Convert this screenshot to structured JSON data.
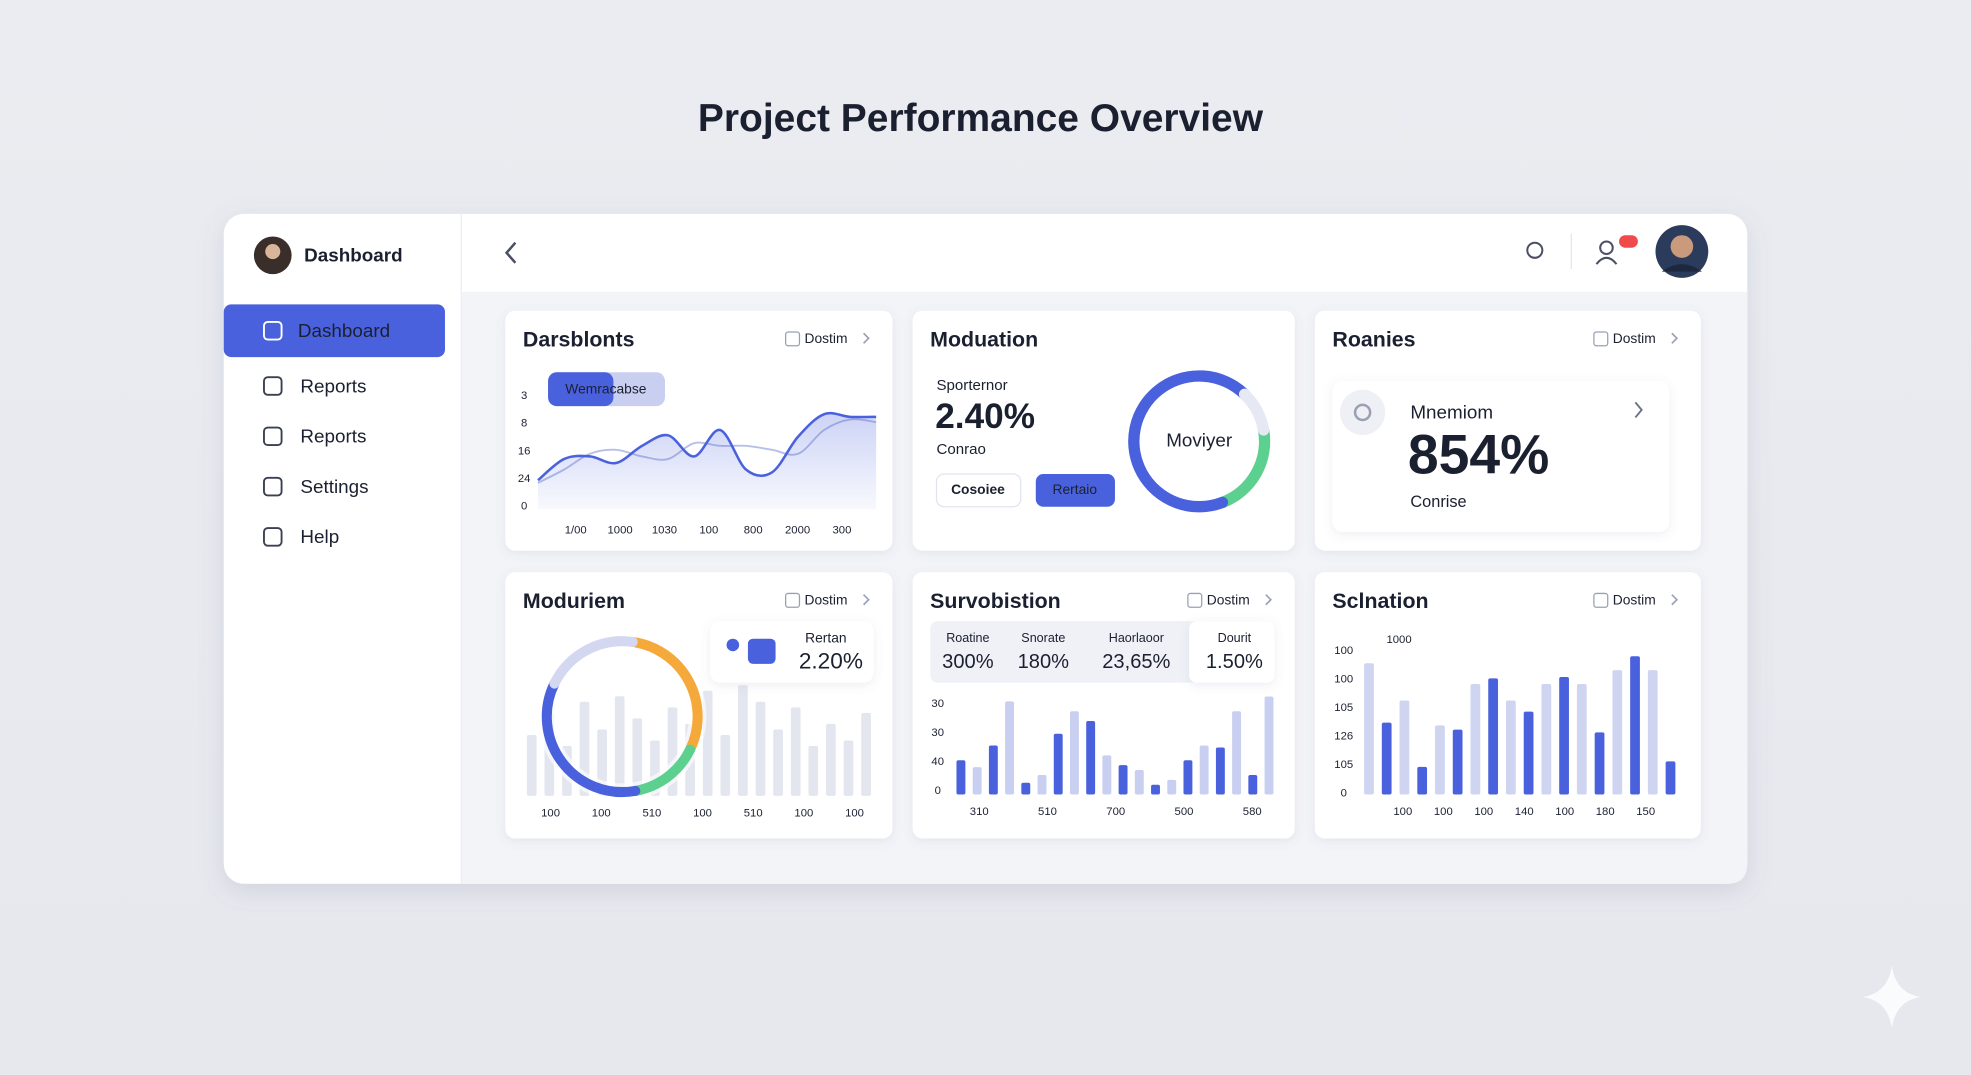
{
  "header": {
    "title": "Project Performance Overview"
  },
  "sidebar": {
    "brand": "Dashboard",
    "nav": [
      "Dashboard",
      "Reports",
      "Reports",
      "Settings",
      "Help"
    ]
  },
  "cards": [
    {
      "title": "Darsblonts",
      "link": "Dostim",
      "pill": "Wemracabse",
      "chart": {
        "type": "line",
        "y_labels": [
          "3",
          "8",
          "16",
          "24",
          "0"
        ],
        "x_labels": [
          "1/00",
          "1000",
          "1030",
          "100",
          "800",
          "2000",
          "300"
        ],
        "ylim": [
          0,
          100
        ],
        "series": [
          {
            "color": "#4a61dd",
            "values": [
              22,
              38,
              40,
              35,
              48,
              56,
              40,
              60,
              30,
              28,
              55,
              72,
              70,
              70
            ]
          },
          {
            "color": "#b7bfe6",
            "values": [
              20,
              30,
              42,
              45,
              40,
              38,
              50,
              48,
              48,
              45,
              42,
              60,
              68,
              66
            ]
          }
        ]
      }
    },
    {
      "title": "Moduation",
      "kpi_label": "Sporternor",
      "kpi_value": "2.40%",
      "kpi_note": "Conrao",
      "buttons": [
        "Cosoiee",
        "Rertaio"
      ],
      "donut": {
        "center": "Moviyer",
        "segments": [
          {
            "color": "#5cd08e",
            "value": 22
          },
          {
            "color": "#4a61dd",
            "value": 68
          },
          {
            "color": "#e6e9f3",
            "value": 10
          }
        ]
      }
    },
    {
      "title": "Roanies",
      "link": "Dostim",
      "kpi_label": "Mnemiom",
      "kpi_value": "854%",
      "kpi_note": "Conrise"
    },
    {
      "title": "Moduriem",
      "link": "Dostim",
      "badge_label": "Rertan",
      "badge_value": "2.20%",
      "donut": {
        "segments": [
          {
            "color": "#f5a93b",
            "value": 30
          },
          {
            "color": "#5cd08e",
            "value": 15
          },
          {
            "color": "#4a61dd",
            "value": 35
          },
          {
            "color": "#d3d8f0",
            "value": 20
          }
        ]
      },
      "bars": {
        "ylim": [
          0,
          100
        ],
        "series": [
          {
            "color": "#e3e6ef",
            "values": [
              55,
              75,
              45,
              85,
              60,
              90,
              70,
              50,
              80,
              65,
              95,
              55,
              100,
              85,
              60,
              80,
              45,
              65,
              50,
              75
            ]
          }
        ]
      },
      "x_labels": [
        "100",
        "100",
        "510",
        "100",
        "510",
        "100",
        "100"
      ]
    },
    {
      "title": "Survobistion",
      "link": "Dostim",
      "table": {
        "headers": [
          "Roatine",
          "Snorate",
          "Haorlaoor",
          "Dourit"
        ],
        "values": [
          "300%",
          "180%",
          "23,65%",
          "1.50%"
        ]
      },
      "bars": {
        "ylim": [
          0,
          100
        ],
        "series": [
          {
            "color": "#4a61dd",
            "values": [
              35,
              50,
              12,
              62,
              75,
              30,
              10,
              35,
              48,
              20
            ]
          },
          {
            "color": "#c9cff1",
            "values": [
              28,
              95,
              20,
              85,
              40,
              25,
              15,
              50,
              85,
              100
            ]
          }
        ]
      },
      "y_labels": [
        "30",
        "30",
        "40",
        "0"
      ],
      "x_labels": [
        "310",
        "510",
        "700",
        "500",
        "580"
      ]
    },
    {
      "title": "Sclnation",
      "link": "Dostim",
      "top_label": "1000",
      "bars": {
        "ylim": [
          0,
          100
        ],
        "series": [
          {
            "color": "#cfd4f0",
            "values": [
              95,
              68,
              50,
              80,
              68,
              80,
              80,
              90,
              90
            ]
          },
          {
            "color": "#4a61dd",
            "values": [
              52,
              20,
              47,
              84,
              60,
              85,
              45,
              100,
              24
            ]
          }
        ]
      },
      "y_labels": [
        "100",
        "100",
        "105",
        "126",
        "105",
        "0"
      ],
      "x_labels": [
        "100",
        "100",
        "100",
        "140",
        "100",
        "180",
        "150"
      ]
    }
  ]
}
